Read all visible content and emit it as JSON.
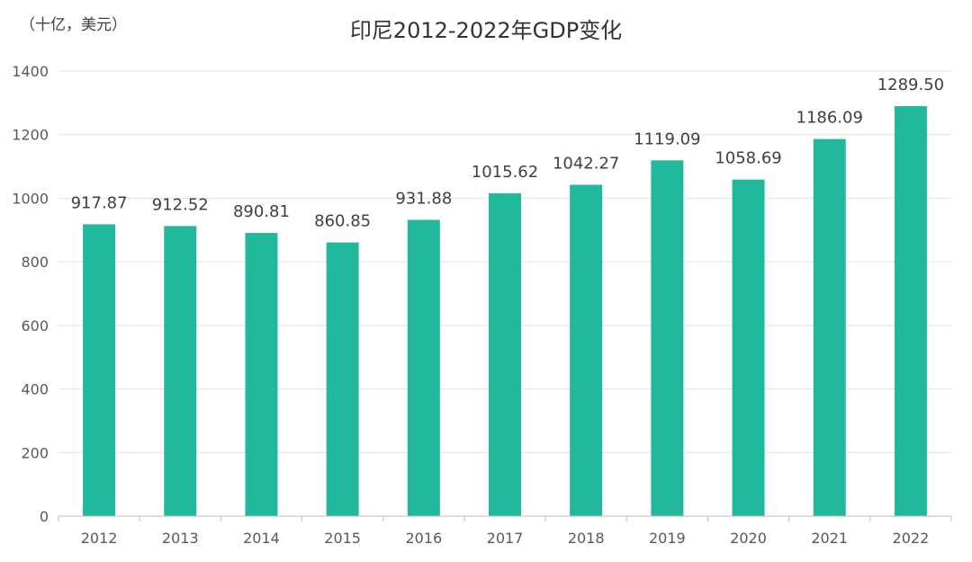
{
  "chart_data": {
    "type": "bar",
    "title": "印尼2012-2022年GDP变化",
    "unit_label": "（十亿，美元）",
    "categories": [
      "2012",
      "2013",
      "2014",
      "2015",
      "2016",
      "2017",
      "2018",
      "2019",
      "2020",
      "2021",
      "2022"
    ],
    "values": [
      917.87,
      912.52,
      890.81,
      860.85,
      931.88,
      1015.62,
      1042.27,
      1119.09,
      1058.69,
      1186.09,
      1289.5
    ],
    "value_labels": [
      "917.87",
      "912.52",
      "890.81",
      "860.85",
      "931.88",
      "1015.62",
      "1042.27",
      "1119.09",
      "1058.69",
      "1186.09",
      "1289.50"
    ],
    "ylim": [
      0,
      1400
    ],
    "yticks": [
      "0",
      "200",
      "400",
      "600",
      "800",
      "1000",
      "1200",
      "1400"
    ],
    "grid": true,
    "bar_color": "#22b89c"
  }
}
